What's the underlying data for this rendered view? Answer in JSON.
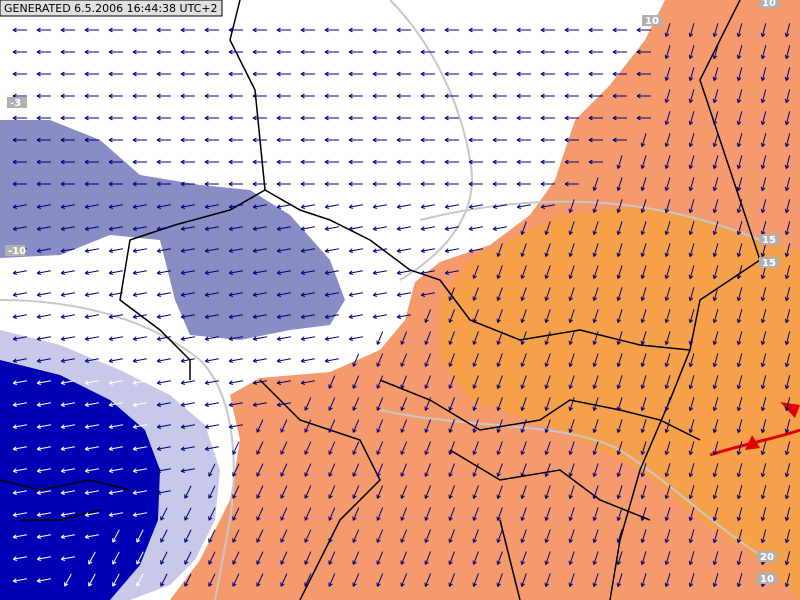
{
  "header": {
    "generated": "GENERATED 6.5.2006 16:44:38 UTC+2"
  },
  "contour_labels": [
    "10",
    "10",
    "-3",
    "-10",
    "15",
    "15",
    "20",
    "10"
  ]
}
